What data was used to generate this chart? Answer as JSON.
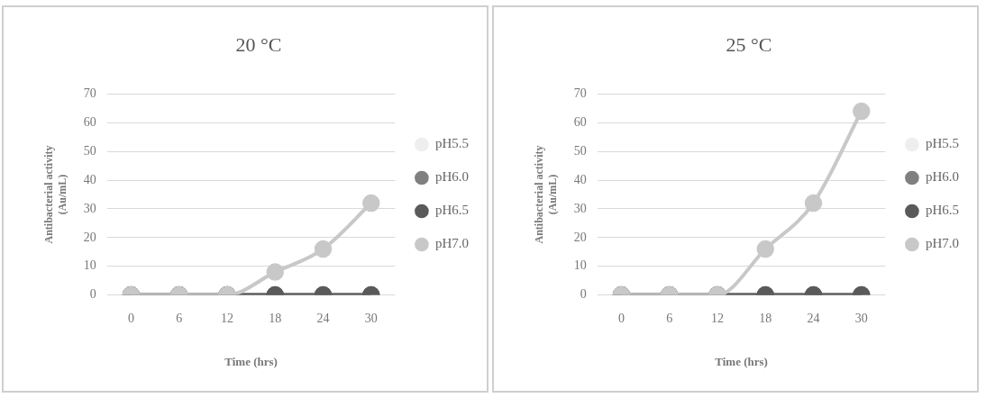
{
  "chart_data": [
    {
      "type": "line",
      "title": "20 °C",
      "xlabel": "Time (hrs)",
      "ylabel": "Antibacterial activity (Au/mL)",
      "categories": [
        "0",
        "6",
        "12",
        "18",
        "24",
        "30"
      ],
      "ylim": [
        0,
        70
      ],
      "yticks": [
        0,
        10,
        20,
        30,
        40,
        50,
        60,
        70
      ],
      "grid": "y",
      "legend": "right",
      "marker": "circle",
      "series": [
        {
          "name": "pH5.5",
          "color": "#eeeeee",
          "values": [
            null,
            null,
            null,
            null,
            null,
            null
          ]
        },
        {
          "name": "pH6.0",
          "color": "#808080",
          "values": [
            0,
            0,
            0,
            0,
            0,
            0
          ]
        },
        {
          "name": "pH6.5",
          "color": "#5a5a5a",
          "values": [
            0,
            0,
            0,
            0,
            0,
            0
          ]
        },
        {
          "name": "pH7.0",
          "color": "#c8c8c8",
          "values": [
            0,
            0,
            0,
            8,
            16,
            32
          ]
        }
      ]
    },
    {
      "type": "line",
      "title": "25 °C",
      "xlabel": "Time (hrs)",
      "ylabel": "Antibacterial activity (Au/mL)",
      "categories": [
        "0",
        "6",
        "12",
        "18",
        "24",
        "30"
      ],
      "ylim": [
        0,
        70
      ],
      "yticks": [
        0,
        10,
        20,
        30,
        40,
        50,
        60,
        70
      ],
      "grid": "y",
      "legend": "right",
      "marker": "circle",
      "series": [
        {
          "name": "pH5.5",
          "color": "#eeeeee",
          "values": [
            null,
            null,
            null,
            null,
            null,
            null
          ]
        },
        {
          "name": "pH6.0",
          "color": "#808080",
          "values": [
            0,
            0,
            0,
            0,
            0,
            0
          ]
        },
        {
          "name": "pH6.5",
          "color": "#5a5a5a",
          "values": [
            0,
            0,
            0,
            0,
            0,
            0
          ]
        },
        {
          "name": "pH7.0",
          "color": "#c8c8c8",
          "values": [
            0,
            0,
            0,
            16,
            32,
            64
          ]
        }
      ]
    }
  ]
}
